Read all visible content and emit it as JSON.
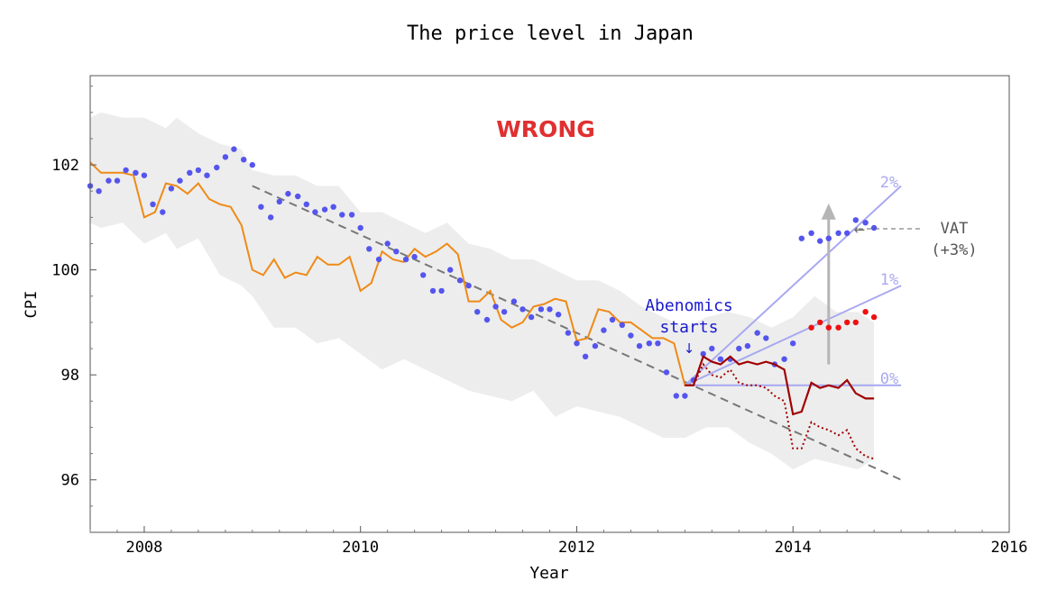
{
  "chart_data": {
    "type": "line",
    "title": "The price level in Japan",
    "xlabel": "Year",
    "ylabel": "CPI",
    "xlim": [
      2007.5,
      2016
    ],
    "ylim": [
      95,
      103.7
    ],
    "x_ticks": [
      2008,
      2010,
      2012,
      2014,
      2016
    ],
    "y_ticks": [
      96,
      98,
      100,
      102
    ],
    "grid": false,
    "stamp": "WRONG",
    "colors": {
      "band": "#ededed",
      "orange": "#ef8a17",
      "dots": "#5555ee",
      "red_dots": "#ee1111",
      "dark_red": "#a00000",
      "trend": "#777777",
      "proj": "#a9a9f0",
      "arrow": "#b5b5b5",
      "stamp": "#e03030",
      "abenomics": "#1a1acc"
    },
    "annotations": {
      "abenomics_line1": "Abenomics",
      "abenomics_line2": "starts",
      "vat_line1": "VAT",
      "vat_line2": "(+3%)",
      "proj_0": "0%",
      "proj_1": "1%",
      "proj_2": "2%"
    },
    "band": {
      "x": [
        2007.5,
        2007.6,
        2007.8,
        2008.0,
        2008.2,
        2008.3,
        2008.5,
        2008.7,
        2008.9,
        2009.0,
        2009.2,
        2009.4,
        2009.6,
        2009.8,
        2010.0,
        2010.2,
        2010.4,
        2010.6,
        2010.8,
        2011.0,
        2011.2,
        2011.4,
        2011.6,
        2011.8,
        2012.0,
        2012.2,
        2012.4,
        2012.6,
        2012.8,
        2013.0,
        2013.2,
        2013.4,
        2013.6,
        2013.8,
        2014.0,
        2014.2,
        2014.4,
        2014.6,
        2014.75
      ],
      "upper": [
        102.9,
        103.0,
        102.9,
        102.9,
        102.7,
        102.9,
        102.6,
        102.4,
        102.3,
        101.9,
        101.8,
        101.8,
        101.6,
        101.6,
        101.1,
        101.1,
        100.9,
        100.7,
        100.9,
        100.5,
        100.4,
        100.2,
        100.2,
        100.0,
        99.8,
        99.8,
        99.6,
        99.3,
        99.1,
        98.9,
        99.1,
        99.2,
        99.1,
        98.9,
        99.1,
        99.5,
        99.2,
        99.2,
        99.0
      ],
      "lower": [
        100.9,
        100.8,
        100.9,
        100.5,
        100.7,
        100.4,
        100.6,
        99.9,
        99.7,
        99.5,
        98.9,
        98.9,
        98.6,
        98.7,
        98.4,
        98.1,
        98.3,
        98.1,
        97.9,
        97.7,
        97.6,
        97.5,
        97.7,
        97.2,
        97.4,
        97.3,
        97.2,
        97.0,
        96.8,
        96.8,
        97.0,
        97.0,
        96.7,
        96.5,
        96.2,
        96.4,
        96.3,
        96.2,
        96.4
      ]
    },
    "series": [
      {
        "name": "",
        "style": "orange",
        "x": [
          2007.5,
          2007.6,
          2007.7,
          2007.8,
          2007.9,
          2008.0,
          2008.1,
          2008.2,
          2008.3,
          2008.4,
          2008.5,
          2008.6,
          2008.7,
          2008.8,
          2008.9,
          2009.0,
          2009.1,
          2009.2,
          2009.3,
          2009.4,
          2009.5,
          2009.6,
          2009.7,
          2009.8,
          2009.9,
          2010.0,
          2010.1,
          2010.2,
          2010.3,
          2010.4,
          2010.5,
          2010.6,
          2010.7,
          2010.8,
          2010.9,
          2011.0,
          2011.1,
          2011.2,
          2011.3,
          2011.4,
          2011.5,
          2011.6,
          2011.7,
          2011.8,
          2011.9,
          2012.0,
          2012.1,
          2012.2,
          2012.3,
          2012.4,
          2012.5,
          2012.6,
          2012.7,
          2012.8,
          2012.9,
          2013.0,
          2013.05
        ],
        "y": [
          102.05,
          101.85,
          101.85,
          101.85,
          101.8,
          101.0,
          101.1,
          101.65,
          101.6,
          101.45,
          101.65,
          101.35,
          101.25,
          101.2,
          100.85,
          100.0,
          99.9,
          100.2,
          99.85,
          99.95,
          99.9,
          100.25,
          100.1,
          100.1,
          100.25,
          99.6,
          99.75,
          100.35,
          100.2,
          100.15,
          100.4,
          100.25,
          100.35,
          100.5,
          100.3,
          99.4,
          99.4,
          99.6,
          99.05,
          98.9,
          99.0,
          99.3,
          99.35,
          99.45,
          99.4,
          98.65,
          98.7,
          99.25,
          99.2,
          99.0,
          99.0,
          98.85,
          98.7,
          98.7,
          98.6,
          97.8,
          97.8
        ]
      },
      {
        "name": "",
        "style": "dots",
        "x": [
          2007.5,
          2007.58,
          2007.67,
          2007.75,
          2007.83,
          2007.92,
          2008.0,
          2008.08,
          2008.17,
          2008.25,
          2008.33,
          2008.42,
          2008.5,
          2008.58,
          2008.67,
          2008.75,
          2008.83,
          2008.92,
          2009.0,
          2009.08,
          2009.17,
          2009.25,
          2009.33,
          2009.42,
          2009.5,
          2009.58,
          2009.67,
          2009.75,
          2009.83,
          2009.92,
          2010.0,
          2010.08,
          2010.17,
          2010.25,
          2010.33,
          2010.42,
          2010.5,
          2010.58,
          2010.67,
          2010.75,
          2010.83,
          2010.92,
          2011.0,
          2011.08,
          2011.17,
          2011.25,
          2011.33,
          2011.42,
          2011.5,
          2011.58,
          2011.67,
          2011.75,
          2011.83,
          2011.92,
          2012.0,
          2012.08,
          2012.17,
          2012.25,
          2012.33,
          2012.42,
          2012.5,
          2012.58,
          2012.67,
          2012.75,
          2012.83,
          2012.92,
          2013.0,
          2013.08,
          2013.17,
          2013.25,
          2013.33,
          2013.42,
          2013.5,
          2013.58,
          2013.67,
          2013.75,
          2013.83,
          2013.92,
          2014.0,
          2014.08,
          2014.17,
          2014.25,
          2014.33,
          2014.42,
          2014.5,
          2014.58,
          2014.67,
          2014.75
        ],
        "y": [
          101.6,
          101.5,
          101.7,
          101.7,
          101.9,
          101.85,
          101.8,
          101.25,
          101.1,
          101.55,
          101.7,
          101.85,
          101.9,
          101.8,
          101.95,
          102.15,
          102.3,
          102.1,
          102.0,
          101.2,
          101.0,
          101.3,
          101.45,
          101.4,
          101.25,
          101.1,
          101.15,
          101.2,
          101.05,
          101.05,
          100.8,
          100.4,
          100.2,
          100.5,
          100.35,
          100.2,
          100.25,
          99.9,
          99.6,
          99.6,
          100.0,
          99.8,
          99.7,
          99.2,
          99.05,
          99.3,
          99.2,
          99.4,
          99.25,
          99.1,
          99.25,
          99.25,
          99.15,
          98.8,
          98.6,
          98.35,
          98.55,
          98.85,
          99.05,
          98.95,
          98.75,
          98.55,
          98.6,
          98.6,
          98.05,
          97.6,
          97.6,
          97.9,
          98.4,
          98.5,
          98.3,
          98.3,
          98.5,
          98.55,
          98.8,
          98.7,
          98.2,
          98.3,
          98.6,
          100.6,
          100.7,
          100.55,
          100.6,
          100.7,
          100.7,
          100.95,
          100.9,
          100.8
        ]
      },
      {
        "name": "",
        "style": "red_dots",
        "x": [
          2014.17,
          2014.25,
          2014.33,
          2014.42,
          2014.5,
          2014.58,
          2014.67,
          2014.75
        ],
        "y": [
          98.9,
          99.0,
          98.9,
          98.9,
          99.0,
          99.0,
          99.2,
          99.1
        ]
      },
      {
        "name": "",
        "style": "dark_red",
        "x": [
          2013.0,
          2013.08,
          2013.17,
          2013.25,
          2013.33,
          2013.42,
          2013.5,
          2013.58,
          2013.67,
          2013.75,
          2013.83,
          2013.92,
          2014.0,
          2014.08,
          2014.17,
          2014.25,
          2014.33,
          2014.42,
          2014.5,
          2014.58,
          2014.67,
          2014.75
        ],
        "y": [
          97.8,
          97.8,
          98.35,
          98.25,
          98.2,
          98.35,
          98.2,
          98.25,
          98.2,
          98.25,
          98.2,
          98.1,
          97.25,
          97.3,
          97.85,
          97.75,
          97.8,
          97.75,
          97.9,
          97.65,
          97.55,
          97.55
        ]
      },
      {
        "name": "",
        "style": "dark_red_dotted",
        "x": [
          2013.0,
          2013.08,
          2013.17,
          2013.25,
          2013.33,
          2013.42,
          2013.5,
          2013.58,
          2013.67,
          2013.75,
          2013.83,
          2013.92,
          2014.0,
          2014.08,
          2014.17,
          2014.25,
          2014.33,
          2014.42,
          2014.5,
          2014.58,
          2014.67,
          2014.75
        ],
        "y": [
          97.8,
          97.8,
          98.2,
          98.0,
          97.95,
          98.1,
          97.85,
          97.8,
          97.8,
          97.75,
          97.6,
          97.5,
          96.6,
          96.6,
          97.1,
          97.0,
          96.95,
          96.85,
          96.95,
          96.6,
          96.45,
          96.4
        ]
      }
    ],
    "trend": {
      "x": [
        2009.0,
        2015.0
      ],
      "y": [
        101.6,
        96.0
      ]
    },
    "projections": [
      {
        "label": "0%",
        "x": [
          2013.0,
          2015.0
        ],
        "y": [
          97.8,
          97.8
        ]
      },
      {
        "label": "1%",
        "x": [
          2013.0,
          2015.0
        ],
        "y": [
          97.8,
          99.7
        ]
      },
      {
        "label": "2%",
        "x": [
          2013.0,
          2015.0
        ],
        "y": [
          97.8,
          101.6
        ]
      }
    ],
    "vat_arrow": {
      "x": 2014.33,
      "y_from": 98.2,
      "y_to": 101.2
    }
  }
}
